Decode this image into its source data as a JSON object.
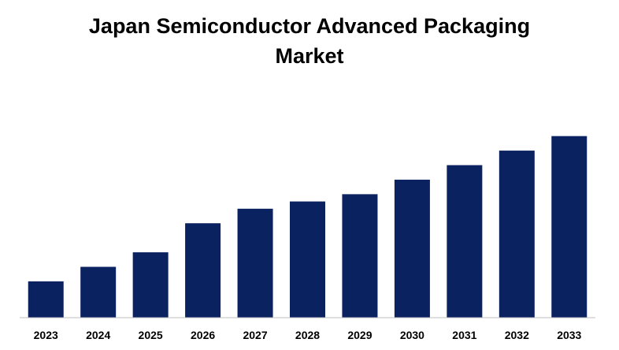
{
  "chart_data": {
    "type": "bar",
    "title_lines": [
      "Japan Semiconductor Advanced Packaging",
      "Market"
    ],
    "categories": [
      "2023",
      "2024",
      "2025",
      "2026",
      "2027",
      "2028",
      "2029",
      "2030",
      "2031",
      "2032",
      "2033"
    ],
    "values": [
      2.5,
      3.5,
      4.5,
      6.5,
      7.5,
      8.0,
      8.5,
      9.5,
      10.5,
      11.5,
      12.5
    ],
    "ylim": [
      0,
      14
    ],
    "xlabel": "",
    "ylabel": "",
    "grid": false,
    "legend": "none",
    "bar_color": "#0b2261",
    "axis_color": "#bfbfbf"
  }
}
